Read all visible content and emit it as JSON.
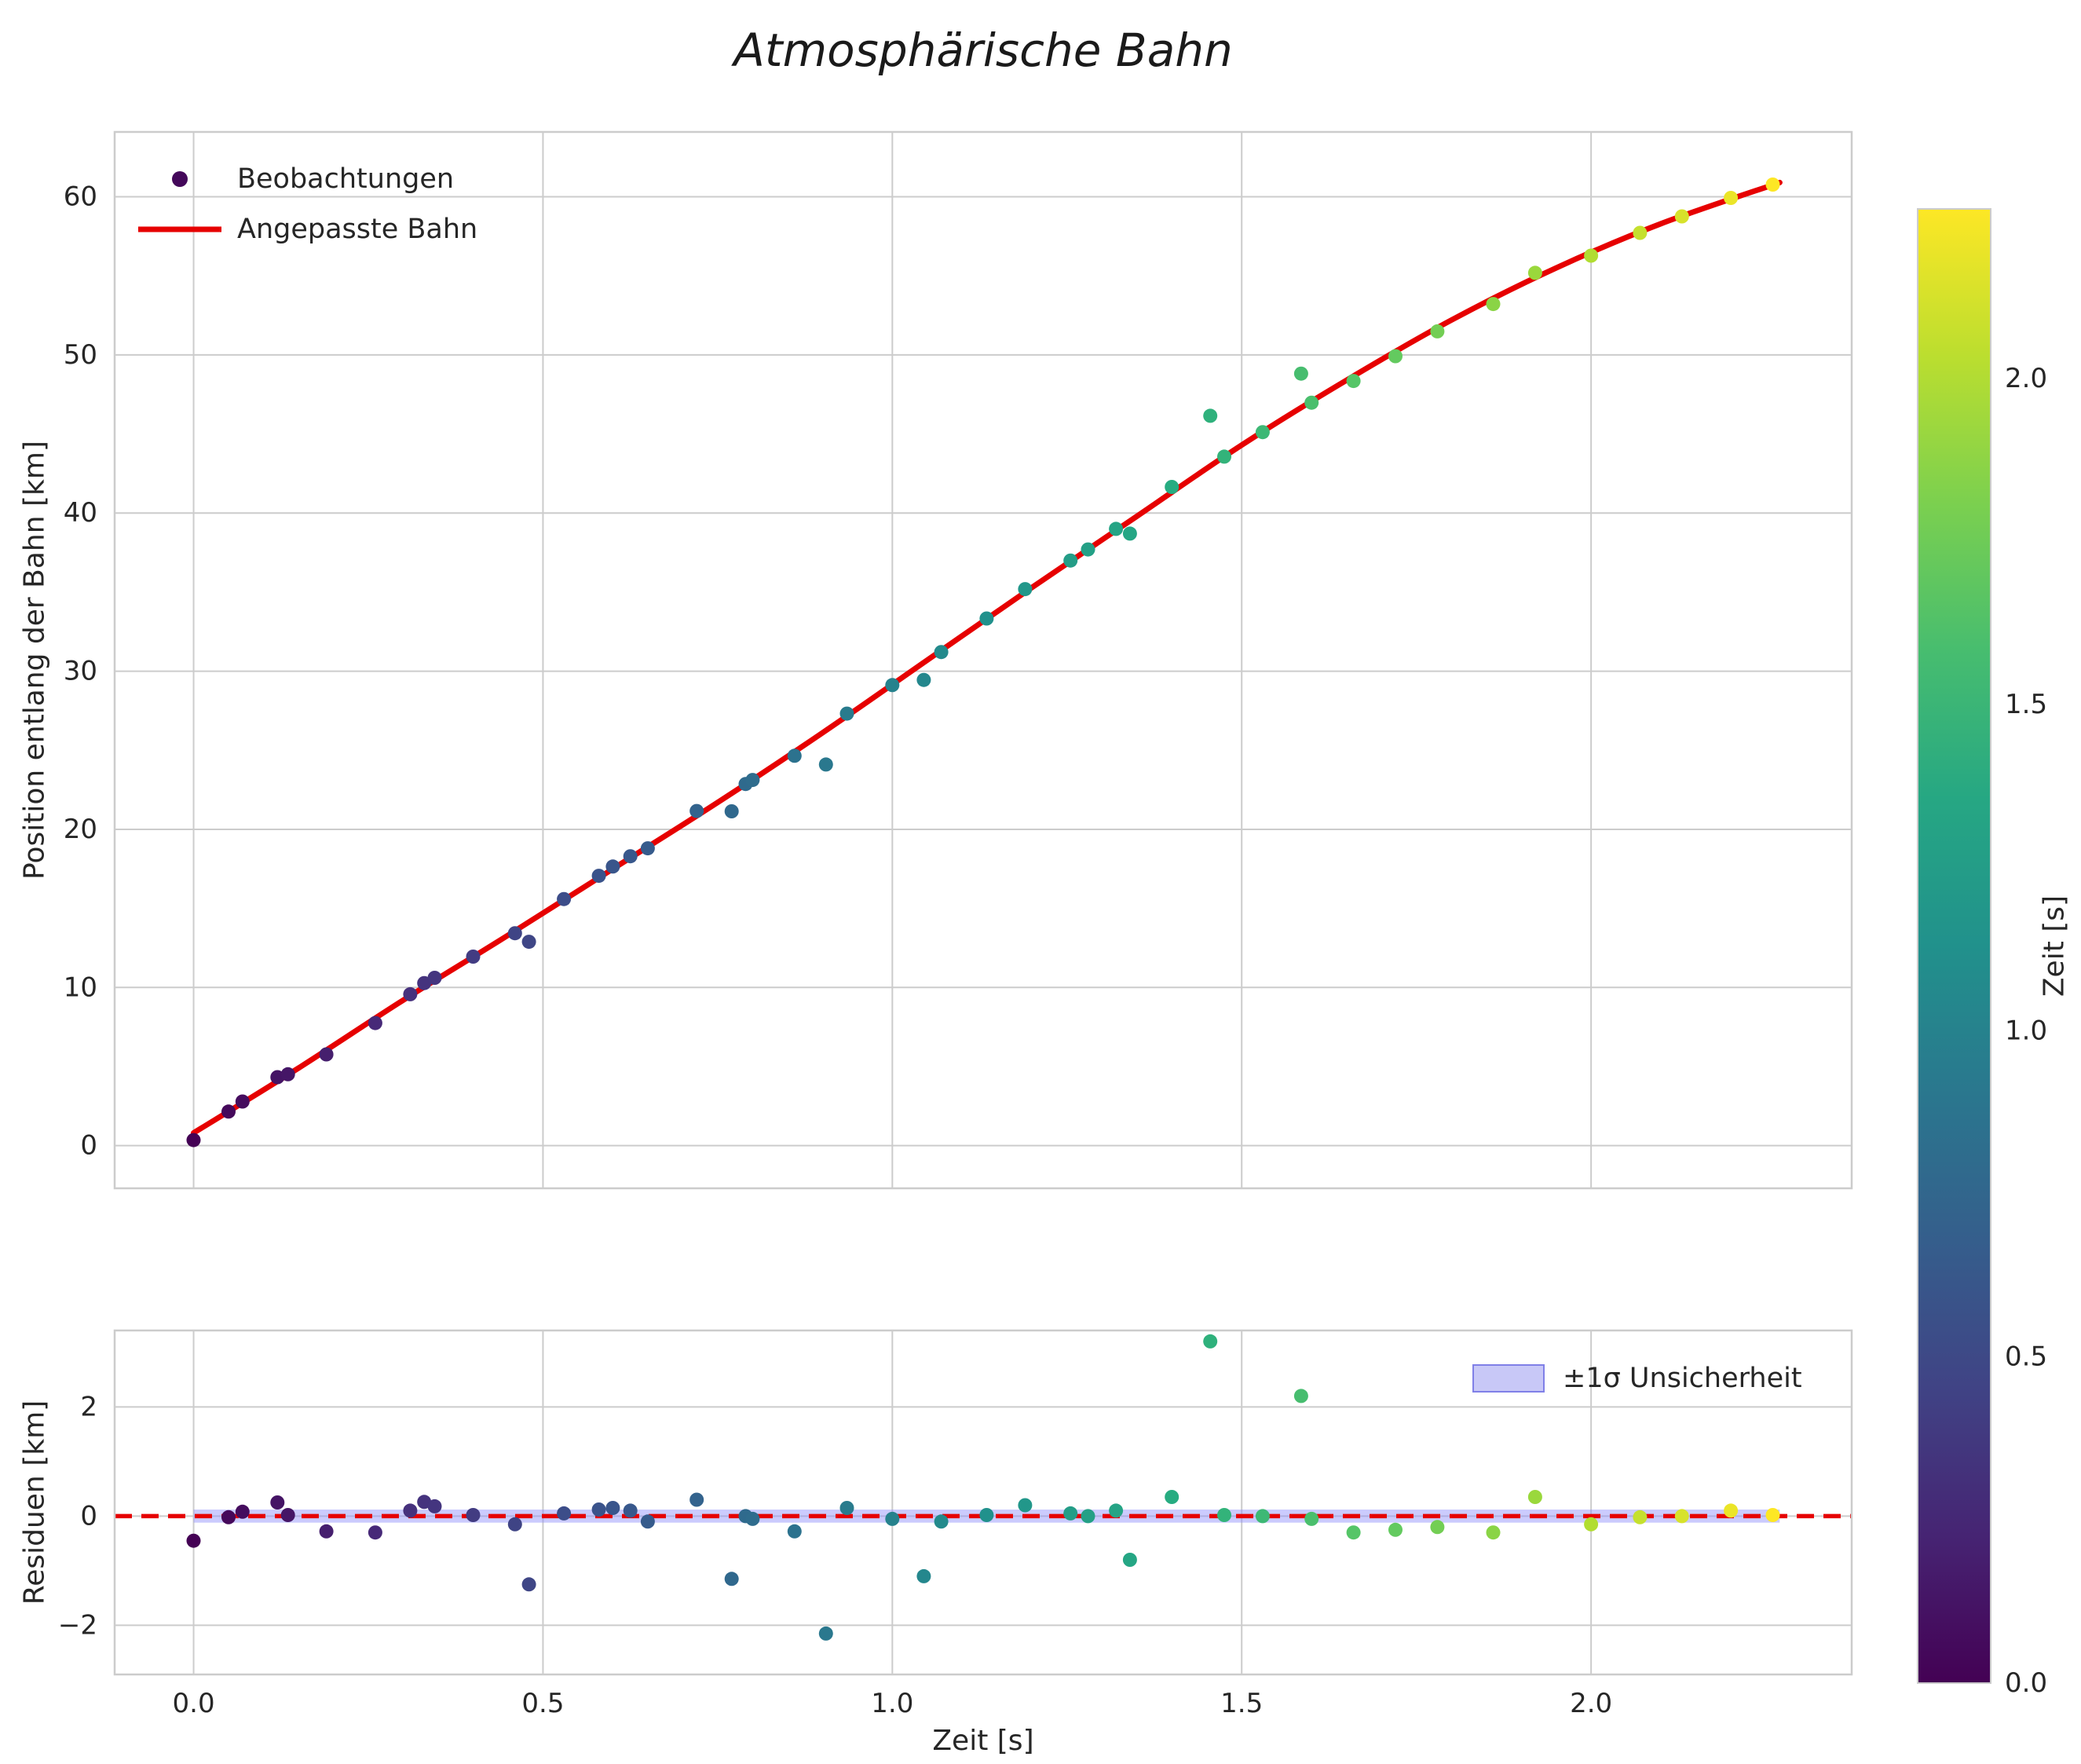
{
  "chart_data": {
    "type": "scatter",
    "title": "Atmosphärische Bahn",
    "x_axis": {
      "label": "Zeit [s]",
      "tick_values": [
        0,
        0.5,
        1,
        1.5,
        2
      ],
      "tick_labels": [
        "0.0",
        "0.5",
        "1.0",
        "1.5",
        "2.0"
      ],
      "range": [
        -0.113,
        2.373
      ]
    },
    "main_panel": {
      "y_axis": {
        "label": "Position entlang der Bahn [km]",
        "tick_values": [
          0,
          10,
          20,
          30,
          40,
          50,
          60
        ],
        "range": [
          -2.7,
          64.1
        ]
      },
      "legend": [
        {
          "label": "Beobachtungen",
          "type": "marker",
          "color": "#440154"
        },
        {
          "label": "Angepasste Bahn",
          "type": "line",
          "color": "#e60000"
        }
      ],
      "grid": true
    },
    "residual_panel": {
      "y_axis": {
        "label": "Residuen [km]",
        "tick_values": [
          -2,
          0,
          2
        ],
        "tick_labels": [
          "−2",
          "0",
          "2"
        ],
        "range": [
          -2.9,
          3.4
        ]
      },
      "legend": [
        {
          "label": "±1σ Unsicherheit",
          "type": "patch",
          "fill": "#b6b6f5",
          "edge": "#5656e0"
        }
      ],
      "zero_line": {
        "color": "#e60000",
        "style": "dashed"
      },
      "uncertainty_band_sigma": 0.12,
      "grid": true
    },
    "colorbar": {
      "label": "Zeit [s]",
      "tick_values": [
        0,
        0.5,
        1,
        1.5,
        2
      ],
      "tick_labels": [
        "0.0",
        "0.5",
        "1.0",
        "1.5",
        "2.0"
      ],
      "vmin": 0,
      "vmax": 2.26,
      "colormap": "viridis"
    },
    "observations": {
      "t": [
        0.0,
        0.05,
        0.07,
        0.12,
        0.135,
        0.19,
        0.26,
        0.31,
        0.33,
        0.345,
        0.4,
        0.46,
        0.48,
        0.53,
        0.58,
        0.6,
        0.625,
        0.65,
        0.72,
        0.77,
        0.79,
        0.8,
        0.86,
        0.905,
        0.935,
        1.0,
        1.045,
        1.07,
        1.135,
        1.19,
        1.255,
        1.28,
        1.32,
        1.34,
        1.4,
        1.455,
        1.475,
        1.53,
        1.585,
        1.6,
        1.66,
        1.72,
        1.78,
        1.86,
        1.92,
        2.0,
        2.07,
        2.13,
        2.2,
        2.26
      ],
      "position_km": [
        0.35,
        2.15,
        2.79,
        4.33,
        4.51,
        5.77,
        7.75,
        9.57,
        10.28,
        10.61,
        11.95,
        13.43,
        12.89,
        15.59,
        17.06,
        17.65,
        18.3,
        18.8,
        21.16,
        21.14,
        22.87,
        23.12,
        24.65,
        24.1,
        27.32,
        29.12,
        29.45,
        31.21,
        33.33,
        35.19,
        37.0,
        37.7,
        39.0,
        38.7,
        41.65,
        46.15,
        43.57,
        45.12,
        48.82,
        46.98,
        48.35,
        49.92,
        51.49,
        53.22,
        55.19,
        56.28,
        57.72,
        58.76,
        59.93,
        60.77
      ],
      "residual_km": [
        -0.45,
        -0.02,
        0.08,
        0.25,
        0.02,
        -0.28,
        -0.3,
        0.1,
        0.26,
        0.18,
        0.02,
        -0.15,
        -1.25,
        0.05,
        0.12,
        0.15,
        0.1,
        -0.1,
        0.3,
        -1.15,
        0.0,
        -0.05,
        -0.28,
        -2.15,
        0.15,
        -0.05,
        -1.1,
        -0.1,
        0.02,
        0.2,
        0.05,
        0.0,
        0.1,
        -0.8,
        0.35,
        3.2,
        0.02,
        0.0,
        2.2,
        -0.05,
        -0.3,
        -0.25,
        -0.2,
        -0.3,
        0.35,
        -0.15,
        -0.02,
        0.0,
        0.1,
        0.02
      ]
    },
    "fitted_curve": {
      "t": [
        0.0,
        0.15,
        0.3,
        0.45,
        0.6,
        0.75,
        0.9,
        1.05,
        1.2,
        1.35,
        1.5,
        1.65,
        1.8,
        1.95,
        2.1,
        2.27
      ],
      "position_km": [
        0.8,
        4.9,
        9.2,
        13.3,
        17.5,
        21.7,
        26.1,
        30.7,
        35.3,
        39.8,
        44.3,
        48.4,
        52.2,
        55.5,
        58.3,
        60.9
      ]
    },
    "colors": {
      "fit_line": "#e60000",
      "text": "#262626",
      "grid": "#cccccc",
      "band_fill": "#8c8cfa",
      "band_edge": "#5656e0"
    }
  }
}
